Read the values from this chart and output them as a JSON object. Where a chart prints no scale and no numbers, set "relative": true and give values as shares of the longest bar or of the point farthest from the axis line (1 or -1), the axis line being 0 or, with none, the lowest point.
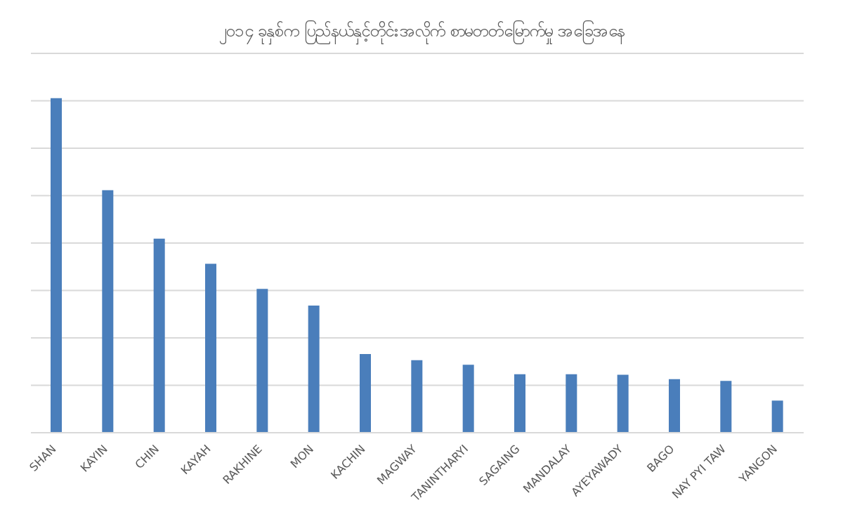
{
  "chart_data": {
    "type": "bar",
    "title": "၂၀၁၄ ခုနှစ်က ပြည်နယ်နှင့်တိုင်းအလိုက် စာမတတ်မြောက်မှု အခြေအနေ",
    "categories": [
      "SHAN",
      "KAYIN",
      "CHIN",
      "KAYAH",
      "RAKHINE",
      "MON",
      "KACHIN",
      "MAGWAY",
      "TANINTHARYI",
      "SAGAING",
      "MANDALAY",
      "AYEYAWADY",
      "BAGO",
      "NAY PYI TAW",
      "YANGON"
    ],
    "values": [
      1,
      0.725,
      0.58,
      0.505,
      0.43,
      0.38,
      0.235,
      0.217,
      0.203,
      0.175,
      0.175,
      0.173,
      0.16,
      0.155,
      0.096
    ],
    "color": "#4a7ebb",
    "relative": true,
    "grid": "y"
  }
}
